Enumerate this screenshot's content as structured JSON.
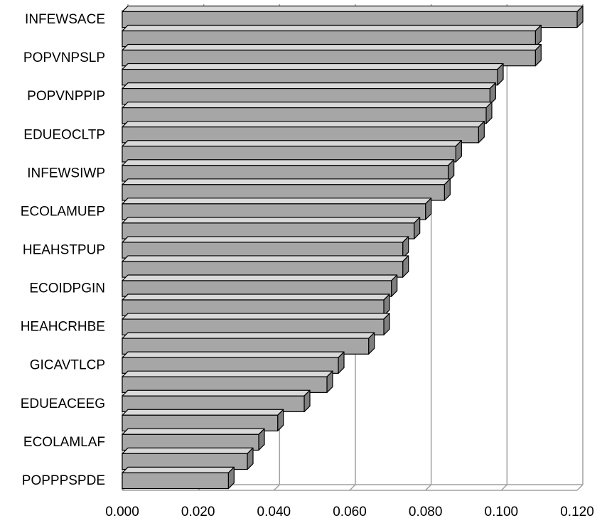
{
  "chart_data": {
    "type": "bar",
    "orientation": "horizontal",
    "style": "3d",
    "categories": [
      "INFEWSACE",
      "",
      "POPVNPSLP",
      "",
      "POPVNPPIP",
      "",
      "EDUEOCLTP",
      "",
      "INFEWSIWP",
      "",
      "ECOLAMUEP",
      "",
      "HEAHSTPUP",
      "",
      "ECOIDPGIN",
      "",
      "HEAHCRHBE",
      "",
      "GICAVTLCP",
      "",
      "EDUEACEEG",
      "",
      "ECOLAMLAF",
      "",
      "POPPPSPDE"
    ],
    "values": [
      0.12,
      0.109,
      0.109,
      0.099,
      0.097,
      0.096,
      0.094,
      0.088,
      0.086,
      0.085,
      0.08,
      0.077,
      0.074,
      0.074,
      0.071,
      0.069,
      0.069,
      0.065,
      0.057,
      0.054,
      0.048,
      0.041,
      0.036,
      0.033,
      0.028
    ],
    "xticks": [
      "0.000",
      "0.020",
      "0.040",
      "0.060",
      "0.080",
      "0.100",
      "0.120"
    ],
    "xlim": [
      0,
      0.12
    ],
    "grid": "vertical",
    "legend": "none",
    "title": "",
    "xlabel": "",
    "ylabel": "",
    "colors": {
      "bar_front": "#a6a6a6",
      "bar_top": "#d9d9d9",
      "bar_side": "#7f7f7f",
      "outline": "#000000",
      "gridline": "#a0a0a0"
    }
  }
}
